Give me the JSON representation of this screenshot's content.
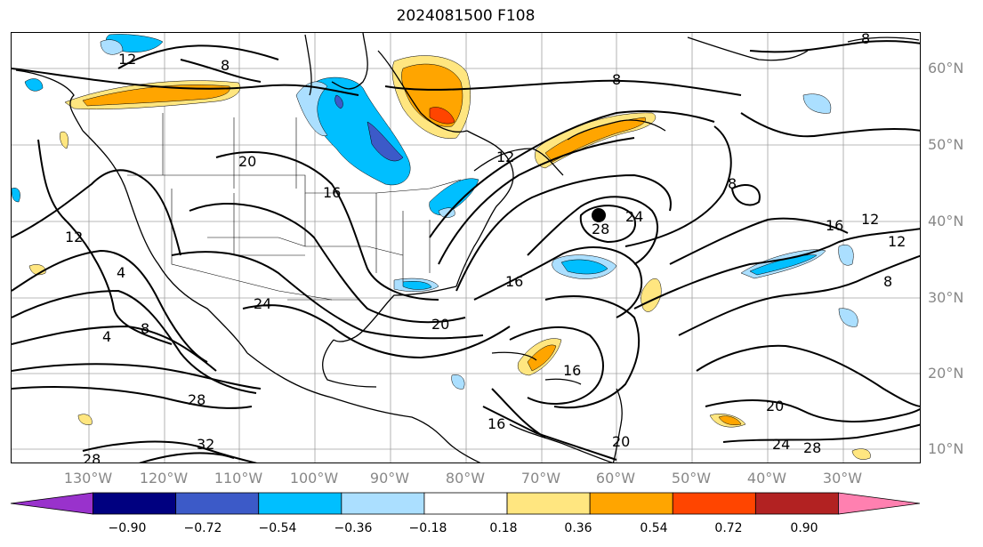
{
  "title": "2024081500 F108",
  "lat_labels": [
    "60°N",
    "50°N",
    "40°N",
    "30°N",
    "20°N",
    "10°N"
  ],
  "lon_labels": [
    "130°W",
    "120°W",
    "110°W",
    "100°W",
    "90°W",
    "80°W",
    "70°W",
    "60°W",
    "50°W",
    "40°W",
    "30°W"
  ],
  "colorbar": {
    "ticks": [
      "−0.90",
      "−0.72",
      "−0.54",
      "−0.36",
      "−0.18",
      "0.18",
      "0.36",
      "0.54",
      "0.72",
      "0.90"
    ],
    "colors": [
      "#9932cc",
      "#000080",
      "#3c5ac8",
      "#00bfff",
      "#abdfff",
      "#ffffff",
      "#ffe680",
      "#ffa500",
      "#ff4500",
      "#b22222",
      "#ff80b0"
    ]
  },
  "contour_labels": [
    "12",
    "8",
    "20",
    "16",
    "12",
    "8",
    "8",
    "12",
    "16",
    "24",
    "28",
    "24",
    "16",
    "20",
    "4",
    "4",
    "8",
    "12",
    "28",
    "32",
    "28",
    "16",
    "20",
    "20",
    "24",
    "28",
    "16",
    "8",
    "8",
    "12"
  ],
  "colors": {
    "frame": "#000000",
    "grid": "#a0a0a0",
    "contour": "#000000",
    "tick_label": "#808080"
  }
}
